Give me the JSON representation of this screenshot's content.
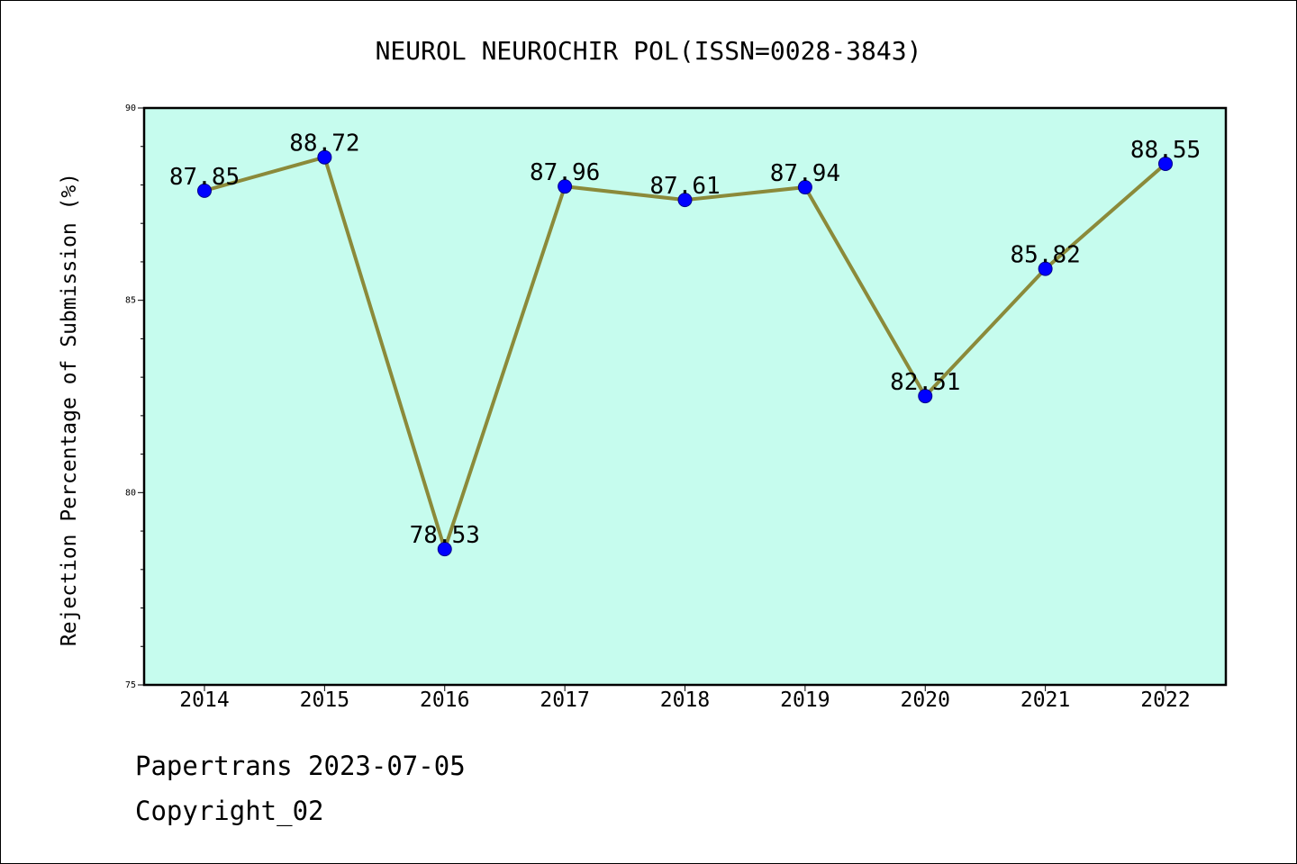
{
  "chart_data": {
    "type": "line",
    "title": "NEUROL NEUROCHIR POL(ISSN=0028-3843)",
    "xlabel": "",
    "ylabel": "Rejection Percentage of Submission (%)",
    "x": [
      "2014",
      "2015",
      "2016",
      "2017",
      "2018",
      "2019",
      "2020",
      "2021",
      "2022"
    ],
    "series": [
      {
        "values": [
          87.85,
          88.72,
          78.53,
          87.96,
          87.61,
          87.94,
          82.51,
          85.82,
          88.55
        ],
        "labels": [
          "87.85",
          "88.72",
          "78.53",
          "87.96",
          "87.61",
          "87.94",
          "82.51",
          "85.82",
          "88.55"
        ],
        "line_color": "#8b8a3a",
        "marker_color": "#0000ff"
      }
    ],
    "ylim": [
      75,
      90
    ],
    "yticks": [
      "75",
      "80",
      "85",
      "90"
    ],
    "grid": false,
    "legend": "none",
    "plot_background": "#c6fcee"
  },
  "footer": {
    "line1": "Papertrans 2023-07-05",
    "line2": "Copyright_02"
  }
}
